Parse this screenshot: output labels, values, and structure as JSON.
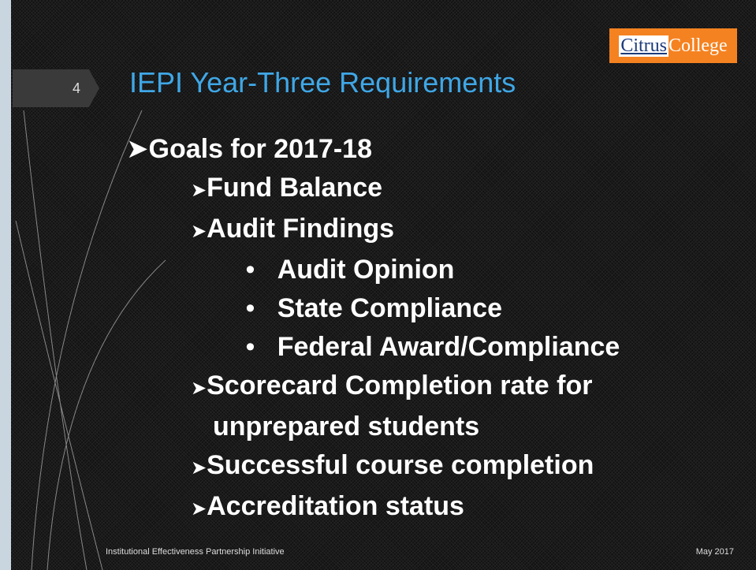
{
  "slide": {
    "number": "4",
    "logo": {
      "part1": "Citrus",
      "part2": "College"
    },
    "title": "IEPI Year-Three Requirements",
    "bullets": [
      {
        "text": "Goals for 2017-18",
        "level": 1
      },
      {
        "text": "Fund Balance",
        "level": 2
      },
      {
        "text": "Audit Findings",
        "level": 2
      },
      {
        "text": "Audit Opinion",
        "level": 3
      },
      {
        "text": "State Compliance",
        "level": 3
      },
      {
        "text": "Federal Award/Compliance",
        "level": 3
      },
      {
        "text": "Scorecard Completion rate for unprepared students",
        "level": 2
      },
      {
        "text": "Successful course completion",
        "level": 2
      },
      {
        "text": "Accreditation status",
        "level": 2
      }
    ],
    "footer_left": "Institutional Effectiveness Partnership Initiative",
    "footer_right": "May 2017"
  }
}
